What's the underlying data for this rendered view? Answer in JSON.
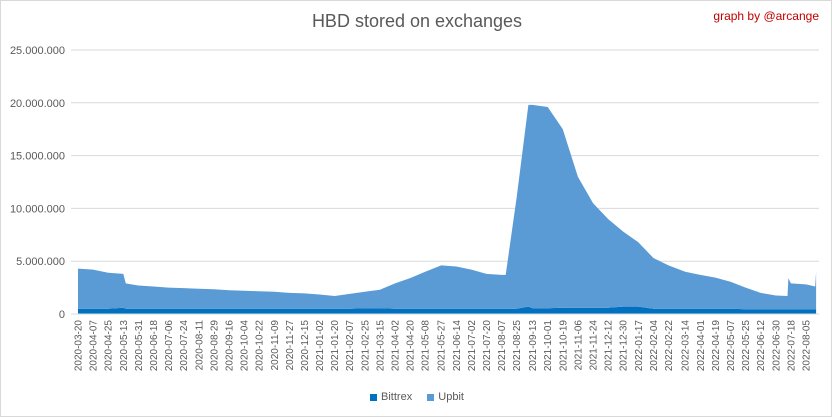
{
  "chart_data": {
    "type": "area",
    "stacked": true,
    "title": "HBD stored on exchanges",
    "annotation": "graph by @arcange",
    "xlabel": "",
    "ylabel": "",
    "ylim": [
      0,
      25000000
    ],
    "yticks": [
      "0",
      "5.000.000",
      "10.000.000",
      "15.000.000",
      "20.000.000",
      "25.000.000"
    ],
    "ytick_values": [
      0,
      5000000,
      10000000,
      15000000,
      20000000,
      25000000
    ],
    "grid": true,
    "legend": "bottom",
    "xtick_labels": [
      "2020-03-20",
      "2020-04-07",
      "2020-04-25",
      "2020-05-13",
      "2020-05-31",
      "2020-06-18",
      "2020-07-06",
      "2020-07-24",
      "2020-08-11",
      "2020-08-29",
      "2020-09-16",
      "2020-10-04",
      "2020-10-22",
      "2020-11-09",
      "2020-11-27",
      "2020-12-15",
      "2021-01-02",
      "2021-01-20",
      "2021-02-07",
      "2021-02-25",
      "2021-03-15",
      "2021-04-02",
      "2021-04-20",
      "2021-05-08",
      "2021-05-27",
      "2021-06-14",
      "2021-07-02",
      "2021-07-20",
      "2021-08-07",
      "2021-08-25",
      "2021-09-13",
      "2021-10-01",
      "2021-10-19",
      "2021-11-06",
      "2021-11-24",
      "2021-12-12",
      "2021-12-30",
      "2022-01-17",
      "2022-02-04",
      "2022-02-22",
      "2022-03-14",
      "2022-04-01",
      "2022-04-19",
      "2022-05-07",
      "2022-05-25",
      "2022-06-12",
      "2022-06-30",
      "2022-07-18",
      "2022-08-05"
    ],
    "x": [
      "2020-03-20",
      "2020-04-07",
      "2020-04-25",
      "2020-05-13",
      "2020-05-16",
      "2020-05-31",
      "2020-06-18",
      "2020-07-06",
      "2020-07-24",
      "2020-08-11",
      "2020-08-29",
      "2020-09-16",
      "2020-10-04",
      "2020-10-22",
      "2020-11-09",
      "2020-11-27",
      "2020-12-15",
      "2021-01-02",
      "2021-01-20",
      "2021-02-07",
      "2021-02-25",
      "2021-03-15",
      "2021-04-02",
      "2021-04-20",
      "2021-05-08",
      "2021-05-27",
      "2021-06-14",
      "2021-07-02",
      "2021-07-20",
      "2021-08-07",
      "2021-08-12",
      "2021-08-25",
      "2021-09-08",
      "2021-09-13",
      "2021-10-01",
      "2021-10-19",
      "2021-11-06",
      "2021-11-24",
      "2021-12-12",
      "2021-12-30",
      "2022-01-17",
      "2022-02-04",
      "2022-02-22",
      "2022-03-14",
      "2022-04-01",
      "2022-04-19",
      "2022-05-07",
      "2022-05-25",
      "2022-06-12",
      "2022-06-30",
      "2022-07-14",
      "2022-07-15",
      "2022-07-18",
      "2022-08-05",
      "2022-08-16",
      "2022-08-17"
    ],
    "series": [
      {
        "name": "Bittrex",
        "color": "#0070c0",
        "values": [
          500000,
          500000,
          500000,
          600000,
          500000,
          500000,
          500000,
          500000,
          500000,
          500000,
          500000,
          500000,
          500000,
          500000,
          500000,
          500000,
          500000,
          500000,
          500000,
          500000,
          550000,
          550000,
          500000,
          500000,
          500000,
          500000,
          500000,
          500000,
          500000,
          500000,
          500000,
          500000,
          700000,
          550000,
          550000,
          600000,
          600000,
          600000,
          600000,
          700000,
          700000,
          500000,
          500000,
          500000,
          500000,
          500000,
          500000,
          450000,
          450000,
          450000,
          450000,
          450000,
          450000,
          450000,
          450000,
          450000
        ]
      },
      {
        "name": "Upbit",
        "color": "#5b9bd5",
        "values": [
          3800000,
          3700000,
          3400000,
          3200000,
          2400000,
          2200000,
          2100000,
          2000000,
          1950000,
          1900000,
          1850000,
          1750000,
          1700000,
          1650000,
          1600000,
          1500000,
          1450000,
          1350000,
          1200000,
          1400000,
          1550000,
          1750000,
          2400000,
          2900000,
          3500000,
          4100000,
          4000000,
          3700000,
          3300000,
          3200000,
          3200000,
          10500000,
          19100000,
          19250000,
          19050000,
          16900000,
          12400000,
          9900000,
          8400000,
          7100000,
          6100000,
          4800000,
          4100000,
          3500000,
          3200000,
          2950000,
          2550000,
          2050000,
          1550000,
          1300000,
          1250000,
          2950000,
          2450000,
          2350000,
          2150000,
          3550000
        ]
      }
    ]
  }
}
